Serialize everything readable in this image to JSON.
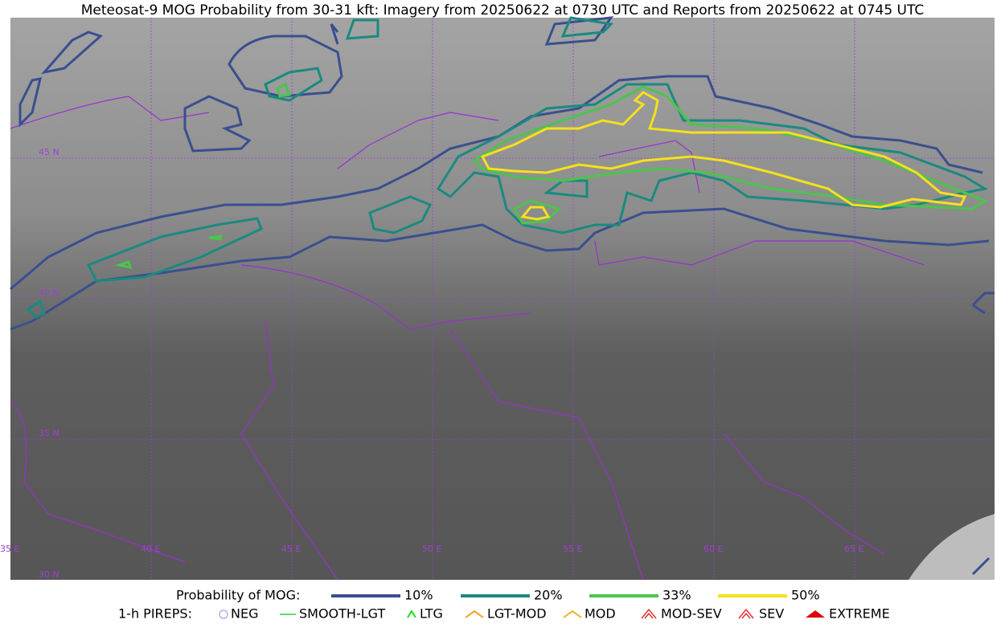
{
  "title": "Meteosat-9 MOG Probability from 30-31 kft: Imagery from 20250622 at 0730 UTC and Reports from 20250622 at 0745 UTC",
  "map": {
    "lat_labels": [
      "45 N",
      "40 N",
      "35 N",
      "30 N"
    ],
    "lon_labels": [
      "35 E",
      "40 E",
      "45 E",
      "50 E",
      "55 E",
      "60 E",
      "65 E"
    ]
  },
  "legend": {
    "probability": {
      "label": "Probability of MOG:",
      "items": [
        {
          "label": "10%",
          "color": "#3a4f8f"
        },
        {
          "label": "20%",
          "color": "#1a8a80"
        },
        {
          "label": "33%",
          "color": "#4cc44c"
        },
        {
          "label": "50%",
          "color": "#f5e11a"
        }
      ]
    },
    "pireps": {
      "label": "1-h PIREPS:",
      "items": [
        {
          "label": "NEG",
          "color": "#b0b0f0"
        },
        {
          "label": "SMOOTH-LGT",
          "color": "#33cc33"
        },
        {
          "label": "LTG",
          "color": "#22dd22"
        },
        {
          "label": "LGT-MOD",
          "color": "#f0a020"
        },
        {
          "label": "MOD",
          "color": "#f0b030"
        },
        {
          "label": "MOD-SEV",
          "color": "#e83030"
        },
        {
          "label": "SEV",
          "color": "#e83030"
        },
        {
          "label": "EXTREME",
          "color": "#e00000"
        }
      ]
    }
  }
}
